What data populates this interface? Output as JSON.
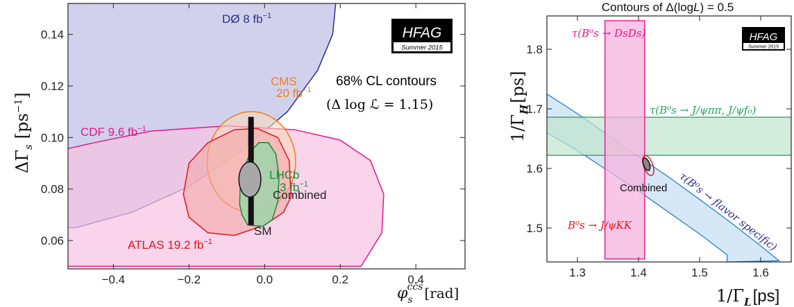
{
  "chart_data": [
    {
      "type": "scatter",
      "xlabel_main": "φ",
      "xlabel_sub": "s",
      "xlabel_sup": "cc̄s",
      "xlabel_unit": "[rad]",
      "ylabel_main": "ΔΓ",
      "ylabel_sub": "s",
      "ylabel_unit": "[ps",
      "ylabel_exp": "−1",
      "ylabel_close": "]",
      "xlim": [
        -0.52,
        0.53
      ],
      "ylim": [
        0.049,
        0.152
      ],
      "xticks": [
        -0.4,
        -0.2,
        0.0,
        0.2,
        0.4
      ],
      "xtick_labels": [
        "−0.4",
        "−0.2",
        "0.0",
        "0.2",
        "0.4"
      ],
      "yticks": [
        0.06,
        0.08,
        0.1,
        0.12,
        0.14
      ],
      "ytick_labels": [
        "0.06",
        "0.08",
        "0.10",
        "0.12",
        "0.14"
      ],
      "logo": {
        "name": "HFAG",
        "subtitle": "Summer 2015"
      },
      "header_line1": "68% CL contours",
      "header_line2": "(Δ log ℒ = 1.15)",
      "series": [
        {
          "name": "DØ 8 fb⁻¹",
          "type": "contour",
          "color": "#2b2f8f",
          "fill": "#c9c9ea"
        },
        {
          "name": "CDF 9.6 fb⁻¹",
          "type": "contour",
          "color": "#e6158c",
          "fill": "#f6c4e2"
        },
        {
          "name": "CMS 20 fb⁻¹",
          "type": "ellipse",
          "color": "#ef7d1a",
          "fill": "#f8d8bc",
          "center": [
            -0.035,
            0.0905
          ],
          "radii": [
            0.117,
            0.0195
          ]
        },
        {
          "name": "ATLAS 19.2 fb⁻¹",
          "type": "contour",
          "color": "#e0151d",
          "fill": "#f4a9a9"
        },
        {
          "name": "LHCb 3 fb⁻¹",
          "type": "contour",
          "color": "#178a38",
          "fill": "#9ed3a8"
        },
        {
          "name": "Combined",
          "type": "ellipse",
          "color": "#111111",
          "fill": "#a8a8a8",
          "center": [
            -0.039,
            0.0837
          ],
          "radii": [
            0.029,
            0.0068
          ]
        }
      ],
      "labels": {
        "d0": "DØ 8 fb",
        "d0_exp": "−1",
        "cms_line1": "CMS",
        "cms_line2": "20 fb",
        "cms_exp": "−1",
        "cdf": "CDF 9.6 fb",
        "cdf_exp": "−1",
        "lhcb_line1": "LHCb",
        "lhcb_line2": "3 fb",
        "lhcb_exp": "−1",
        "combined": "Combined",
        "sm": "SM",
        "atlas": "ATLAS 19.2 fb",
        "atlas_exp": "−1"
      },
      "sm_band": {
        "x": -0.036,
        "y_range": [
          0.066,
          0.108
        ]
      }
    },
    {
      "type": "scatter",
      "title": "Contours of Δ(log",
      "title_L": "L",
      "title_end": ") = 0.5",
      "xlabel": "1/Γ",
      "xlabel_sub": "L",
      "xlabel_unit": "[ps]",
      "ylabel": "1/Γ",
      "ylabel_sub": "H",
      "ylabel_unit": "[ps]",
      "xlim": [
        1.25,
        1.65
      ],
      "ylim": [
        1.443,
        1.856
      ],
      "xticks": [
        1.3,
        1.4,
        1.5,
        1.6
      ],
      "xtick_labels": [
        "1.3",
        "1.4",
        "1.5",
        "1.6"
      ],
      "yticks": [
        1.5,
        1.6,
        1.7,
        1.8
      ],
      "ytick_labels": [
        "1.5",
        "1.6",
        "1.7",
        "1.8"
      ],
      "logo": {
        "name": "HFAG",
        "subtitle": "Summer 2015"
      },
      "bands": [
        {
          "name": "τ(B⁰s → DsDs)",
          "type": "vertical",
          "color": "#e6158c",
          "fill": "#f6b3dd",
          "x_range": [
            1.345,
            1.41
          ],
          "y_range": [
            1.448,
            1.848
          ]
        },
        {
          "name": "τ(B⁰s → J/ψππ, J/ψf₀)",
          "type": "horizontal",
          "color": "#21a35a",
          "fill": "#bfe6cf",
          "y_range": [
            1.622,
            1.686
          ],
          "x_range": [
            1.25,
            1.65
          ]
        },
        {
          "name": "τ(B⁰s → flavor specific)",
          "type": "diagonal",
          "color": "#2d7fc4",
          "fill": "#cfe3f4"
        }
      ],
      "labels": {
        "dsds": "τ(B⁰s → DsDs)",
        "jpsipipi": "τ(B⁰s → J/ψππ, J/ψf₀)",
        "combined": "Combined",
        "jpsikk": "B⁰s → J/ψKK",
        "flavor": "τ(B⁰s → flavor specific)"
      },
      "combined": {
        "center": [
          1.413,
          1.607
        ],
        "radii": [
          0.005,
          0.011
        ]
      }
    }
  ]
}
